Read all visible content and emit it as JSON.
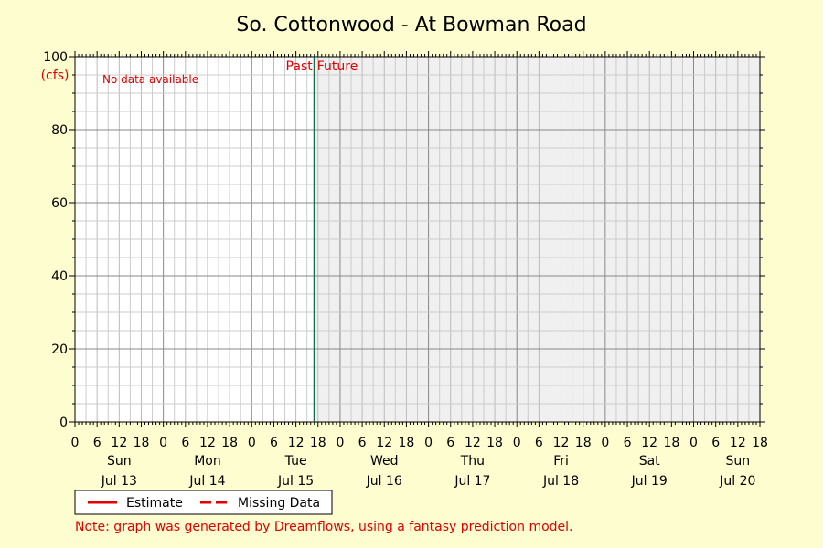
{
  "chart_data": {
    "type": "line",
    "title": "So. Cottonwood - At Bowman Road",
    "ylabel": "(cfs)",
    "ylim": [
      0,
      100
    ],
    "y_ticks": [
      "0",
      "20",
      "40",
      "60",
      "80",
      "100"
    ],
    "xlim": [
      "2025-07-13T00:00",
      "2025-07-20T18:00"
    ],
    "now": "2025-07-15T17:00",
    "hour_labels": [
      "0",
      "6",
      "12",
      "18"
    ],
    "days": [
      {
        "day": "Sun",
        "date": "Jul 13"
      },
      {
        "day": "Mon",
        "date": "Jul 14"
      },
      {
        "day": "Tue",
        "date": "Jul 15"
      },
      {
        "day": "Wed",
        "date": "Jul 16"
      },
      {
        "day": "Thu",
        "date": "Jul 17"
      },
      {
        "day": "Fri",
        "date": "Jul 18"
      },
      {
        "day": "Sat",
        "date": "Jul 19"
      },
      {
        "day": "Sun",
        "date": "Jul 20"
      }
    ],
    "past_label": "Past",
    "future_label": "Future",
    "no_data_text": "No data available",
    "series": [],
    "legend": {
      "placement": "bottom-left",
      "entries": [
        {
          "label": "Estimate",
          "style": "solid",
          "color": "#e00000"
        },
        {
          "label": "Missing Data",
          "style": "dashed",
          "color": "#e00000"
        }
      ]
    },
    "grid": true,
    "colors": {
      "now_line": "#1a6b4a",
      "future_bg": "#f0f0f0",
      "past_bg": "#ffffff",
      "major_grid": "#888888",
      "minor_grid": "#cccccc"
    }
  },
  "note": "Note: graph was generated by Dreamflows, using a fantasy prediction model."
}
